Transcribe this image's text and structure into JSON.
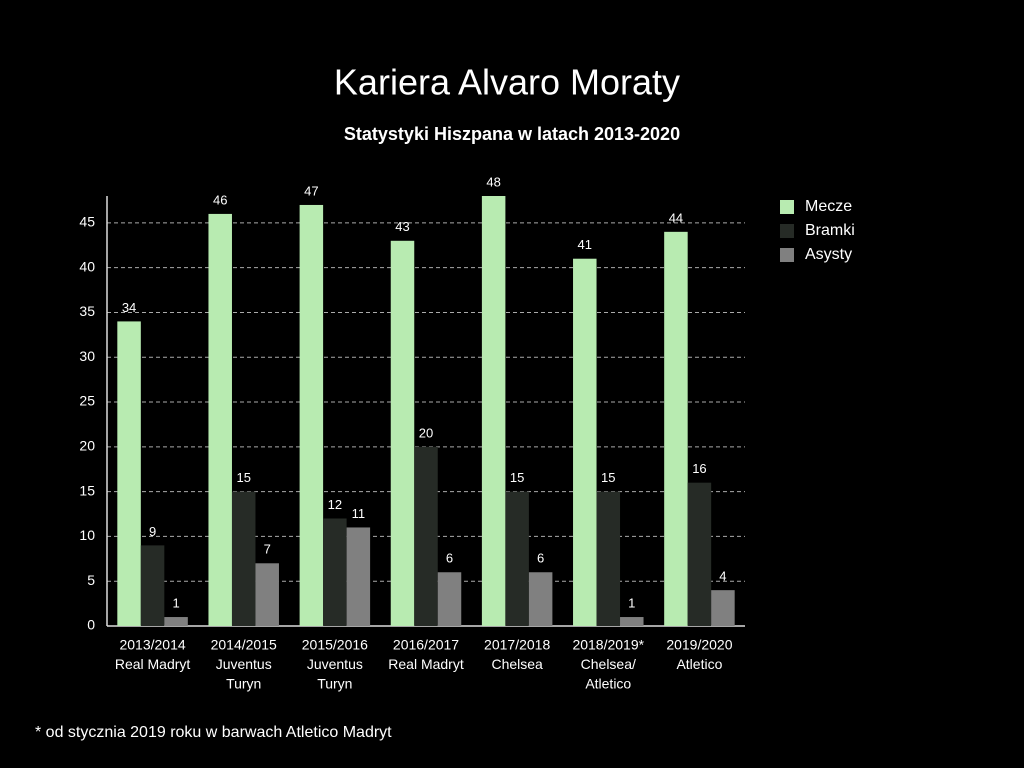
{
  "chart_data": {
    "type": "bar",
    "title": "Kariera Alvaro Moraty",
    "subtitle": "Statystyki Hiszpana w latach 2013-2020",
    "footnote": "* od stycznia 2019 roku w barwach Atletico Madryt",
    "categories": [
      [
        "2013/2014",
        "Real Madryt"
      ],
      [
        "2014/2015",
        "Juventus",
        "Turyn"
      ],
      [
        "2015/2016",
        "Juventus",
        "Turyn"
      ],
      [
        "2016/2017",
        "Real Madryt"
      ],
      [
        "2017/2018",
        "Chelsea"
      ],
      [
        "2018/2019*",
        "Chelsea/",
        "Atletico"
      ],
      [
        "2019/2020",
        "Atletico"
      ]
    ],
    "series": [
      {
        "name": "Mecze",
        "color": "#b8ebb1",
        "values": [
          34,
          46,
          47,
          43,
          48,
          41,
          44
        ]
      },
      {
        "name": "Bramki",
        "color": "#262b26",
        "values": [
          9,
          15,
          12,
          20,
          15,
          15,
          16
        ]
      },
      {
        "name": "Asysty",
        "color": "#808080",
        "values": [
          1,
          7,
          11,
          6,
          6,
          1,
          4
        ]
      }
    ],
    "ylim": [
      0,
      48
    ],
    "yticks": [
      0,
      5,
      10,
      15,
      20,
      25,
      30,
      35,
      40,
      45
    ],
    "grid": true,
    "legend": "right"
  }
}
